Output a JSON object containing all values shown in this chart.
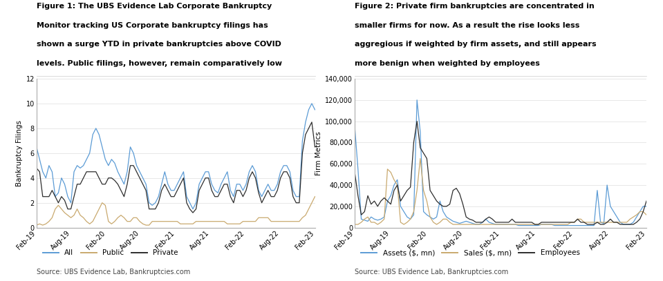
{
  "fig1_title_lines": [
    "Figure 1: The UBS Evidence Lab Corporate Bankruptcy",
    "Monitor tracking US Corporate bankruptcy filings has",
    "shown a surge YTD in private bankruptcies above COVID",
    "levels. Public filings, however, remain comparatively low"
  ],
  "fig2_title_lines": [
    "Figure 2: Private firm bankruptcies are concentrated in",
    "smaller firms for now. As a result the rise looks less",
    "aggregious if weighted by firm assets, and still appears",
    "more benign when weighted by employees"
  ],
  "source_text": "Source: UBS Evidence Lab, Bankruptcies.com",
  "fig1_ylabel": "Bankruptcy Filings",
  "fig2_ylabel": "Firm Metrics",
  "fig1_ylim": [
    0,
    12
  ],
  "fig2_ylim": [
    0,
    140000
  ],
  "fig1_yticks": [
    0,
    2,
    4,
    6,
    8,
    10,
    12
  ],
  "fig2_yticks": [
    0,
    20000,
    40000,
    60000,
    80000,
    100000,
    120000,
    140000
  ],
  "xtick_labels": [
    "Feb-19",
    "Aug-19",
    "Feb-20",
    "Aug-20",
    "Feb-21",
    "Aug-21",
    "Feb-22",
    "Aug-22",
    "Feb-23"
  ],
  "color_all": "#5b9bd5",
  "color_public": "#c9a96e",
  "color_private": "#2d2d2d",
  "color_assets": "#5b9bd5",
  "color_sales": "#c9a96e",
  "color_employees": "#2d2d2d",
  "fig1_legend": [
    "All",
    "Public",
    "Private"
  ],
  "fig2_legend": [
    "Assets ($, mn)",
    "Sales ($, mn)",
    "Employees"
  ],
  "background_color": "#ffffff",
  "fig1_all": [
    6.5,
    5.5,
    4.5,
    4.0,
    5.0,
    4.5,
    2.5,
    2.8,
    4.0,
    3.5,
    2.5,
    2.0,
    4.5,
    5.0,
    4.8,
    5.0,
    5.5,
    6.0,
    7.5,
    8.0,
    7.5,
    6.5,
    5.5,
    5.0,
    5.5,
    5.2,
    4.5,
    4.0,
    3.5,
    4.5,
    6.5,
    6.0,
    5.0,
    4.5,
    4.0,
    3.5,
    2.0,
    1.8,
    2.0,
    2.5,
    3.5,
    4.5,
    3.5,
    3.0,
    3.0,
    3.5,
    4.0,
    4.5,
    2.5,
    2.0,
    1.5,
    2.0,
    3.5,
    4.0,
    4.5,
    4.5,
    3.5,
    3.0,
    2.8,
    3.5,
    4.0,
    4.5,
    3.0,
    2.5,
    3.5,
    3.5,
    3.0,
    3.5,
    4.5,
    5.0,
    4.5,
    3.0,
    2.5,
    3.0,
    3.5,
    3.0,
    3.0,
    3.5,
    4.5,
    5.0,
    5.0,
    4.5,
    3.0,
    2.5,
    2.5,
    7.0,
    8.5,
    9.5,
    10.0,
    9.5
  ],
  "fig1_public": [
    0.2,
    0.3,
    0.2,
    0.3,
    0.5,
    0.8,
    1.5,
    1.8,
    1.5,
    1.2,
    1.0,
    0.8,
    1.0,
    1.5,
    1.0,
    0.8,
    0.5,
    0.3,
    0.5,
    1.0,
    1.5,
    2.0,
    1.8,
    0.5,
    0.3,
    0.5,
    0.8,
    1.0,
    0.8,
    0.5,
    0.5,
    0.8,
    0.8,
    0.5,
    0.3,
    0.2,
    0.2,
    0.5,
    0.5,
    0.5,
    0.5,
    0.5,
    0.5,
    0.5,
    0.5,
    0.5,
    0.3,
    0.3,
    0.3,
    0.3,
    0.3,
    0.5,
    0.5,
    0.5,
    0.5,
    0.5,
    0.5,
    0.5,
    0.5,
    0.5,
    0.5,
    0.3,
    0.3,
    0.3,
    0.3,
    0.3,
    0.5,
    0.5,
    0.5,
    0.5,
    0.5,
    0.8,
    0.8,
    0.8,
    0.8,
    0.5,
    0.5,
    0.5,
    0.5,
    0.5,
    0.5,
    0.5,
    0.5,
    0.5,
    0.5,
    0.8,
    1.0,
    1.5,
    2.0,
    2.5
  ],
  "fig1_private": [
    4.8,
    4.5,
    2.5,
    2.5,
    2.5,
    3.0,
    2.5,
    2.0,
    2.5,
    2.2,
    1.5,
    1.5,
    2.5,
    3.5,
    3.5,
    4.0,
    4.5,
    4.5,
    4.5,
    4.5,
    4.0,
    3.5,
    3.5,
    4.0,
    4.0,
    3.8,
    3.5,
    3.0,
    2.5,
    3.5,
    5.0,
    5.0,
    4.5,
    4.0,
    3.5,
    3.0,
    1.5,
    1.5,
    1.5,
    2.0,
    3.0,
    3.5,
    3.0,
    2.5,
    2.5,
    3.0,
    3.5,
    4.0,
    2.0,
    1.5,
    1.2,
    1.5,
    3.0,
    3.5,
    4.0,
    4.0,
    3.0,
    2.5,
    2.5,
    3.0,
    3.5,
    3.5,
    2.5,
    2.0,
    3.0,
    3.0,
    2.5,
    3.0,
    4.0,
    4.5,
    4.0,
    2.8,
    2.0,
    2.5,
    3.0,
    2.5,
    2.5,
    3.0,
    4.0,
    4.5,
    4.5,
    4.0,
    2.5,
    2.0,
    2.0,
    6.0,
    7.5,
    8.0,
    8.5,
    6.5
  ],
  "fig2_assets": [
    95000,
    55000,
    8000,
    7000,
    6000,
    10000,
    8000,
    7000,
    8000,
    10000,
    25000,
    30000,
    40000,
    45000,
    20000,
    15000,
    10000,
    8000,
    12000,
    120000,
    90000,
    15000,
    12000,
    10000,
    8000,
    10000,
    25000,
    15000,
    10000,
    8000,
    6000,
    5000,
    4000,
    5000,
    6000,
    5000,
    4000,
    3000,
    3000,
    5000,
    8000,
    5000,
    4000,
    3000,
    3000,
    3000,
    3000,
    3000,
    3000,
    3000,
    2000,
    2000,
    2000,
    2000,
    2000,
    2000,
    2000,
    3000,
    3000,
    3000,
    3000,
    2000,
    2000,
    2000,
    2000,
    2000,
    2000,
    2000,
    2000,
    2000,
    2000,
    2000,
    2000,
    2000,
    35000,
    5000,
    4000,
    40000,
    20000,
    15000,
    10000,
    5000,
    3000,
    3000,
    3000,
    5000,
    10000,
    15000,
    20000,
    20000
  ],
  "fig2_sales": [
    3000,
    3000,
    5000,
    8000,
    10000,
    5000,
    5000,
    3000,
    5000,
    8000,
    55000,
    52000,
    45000,
    40000,
    5000,
    3000,
    5000,
    8000,
    15000,
    35000,
    65000,
    35000,
    25000,
    10000,
    5000,
    3000,
    5000,
    8000,
    8000,
    5000,
    3000,
    3000,
    3000,
    3000,
    3000,
    3000,
    3000,
    3000,
    3000,
    3000,
    3000,
    3000,
    3000,
    3000,
    3000,
    3000,
    3000,
    3000,
    3000,
    3000,
    3000,
    3000,
    3000,
    3000,
    3000,
    3000,
    3000,
    3000,
    3000,
    3000,
    3000,
    3000,
    3000,
    3000,
    3000,
    3000,
    5000,
    5000,
    8000,
    8000,
    5000,
    5000,
    5000,
    5000,
    5000,
    5000,
    5000,
    5000,
    5000,
    5000,
    5000,
    5000,
    5000,
    5000,
    8000,
    10000,
    12000,
    15000,
    15000,
    12000
  ],
  "fig2_employees": [
    52000,
    30000,
    12000,
    15000,
    30000,
    22000,
    25000,
    20000,
    25000,
    28000,
    25000,
    22000,
    35000,
    40000,
    25000,
    30000,
    35000,
    38000,
    80000,
    100000,
    75000,
    70000,
    65000,
    35000,
    30000,
    25000,
    22000,
    20000,
    20000,
    22000,
    35000,
    37000,
    32000,
    22000,
    10000,
    8000,
    7000,
    5000,
    5000,
    5000,
    8000,
    10000,
    8000,
    5000,
    5000,
    5000,
    5000,
    5000,
    8000,
    5000,
    5000,
    5000,
    5000,
    5000,
    5000,
    3000,
    3000,
    5000,
    5000,
    5000,
    5000,
    5000,
    5000,
    5000,
    5000,
    5000,
    5000,
    5000,
    8000,
    5000,
    5000,
    3000,
    3000,
    3000,
    5000,
    3000,
    3000,
    5000,
    8000,
    5000,
    5000,
    3000,
    3000,
    3000,
    3000,
    3000,
    5000,
    8000,
    15000,
    25000
  ]
}
